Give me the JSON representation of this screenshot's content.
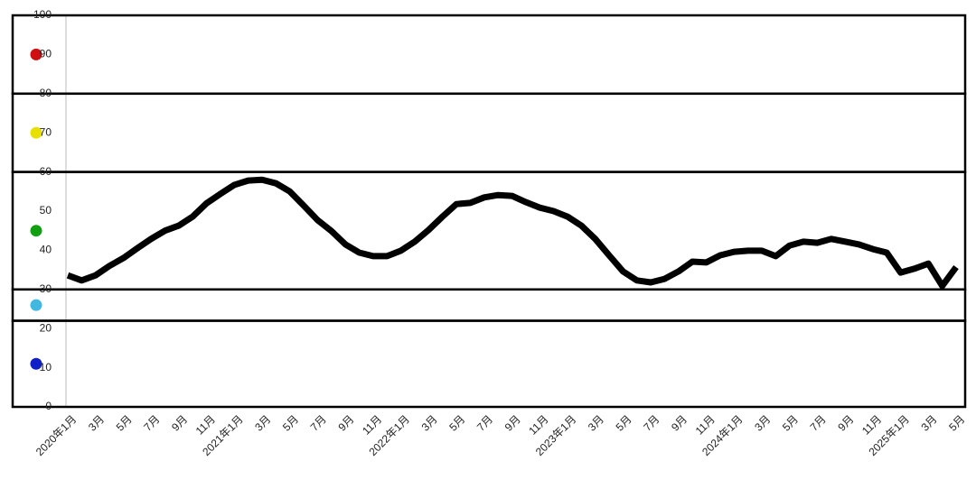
{
  "chart_data": {
    "type": "line",
    "categories": [
      "2020年1月",
      null,
      "3月",
      null,
      "5月",
      null,
      "7月",
      null,
      "9月",
      null,
      "11月",
      null,
      "2021年1月",
      null,
      "3月",
      null,
      "5月",
      null,
      "7月",
      null,
      "9月",
      null,
      "11月",
      null,
      "2022年1月",
      null,
      "3月",
      null,
      "5月",
      null,
      "7月",
      null,
      "9月",
      null,
      "11月",
      null,
      "2023年1月",
      null,
      "3月",
      null,
      "5月",
      null,
      "7月",
      null,
      "9月",
      null,
      "11月",
      null,
      "2024年1月",
      null,
      "3月",
      null,
      "5月",
      null,
      "7月",
      null,
      "9月",
      null,
      "11月",
      null,
      "2025年1月",
      null,
      "3月",
      null,
      "5月"
    ],
    "values": [
      33.6,
      32.3,
      33.6,
      36,
      38,
      40.5,
      42.9,
      45,
      46.3,
      48.6,
      52,
      54.4,
      56.7,
      57.8,
      58,
      57.1,
      55,
      51.4,
      47.7,
      44.9,
      41.5,
      39.4,
      38.5,
      38.5,
      39.9,
      42.2,
      45.2,
      48.6,
      51.8,
      52.1,
      53.5,
      54.1,
      53.9,
      52.3,
      50.9,
      50,
      48.6,
      46.3,
      42.9,
      38.7,
      34.6,
      32.3,
      31.8,
      32.7,
      34.6,
      37.1,
      36.9,
      38.7,
      39.6,
      39.9,
      39.9,
      38.5,
      41.2,
      42.2,
      41.9,
      42.9,
      42.2,
      41.5,
      40.3,
      39.4,
      34.3,
      35.3,
      36.6,
      30.9,
      35.7
    ],
    "color": "#000000",
    "ylim": [
      0,
      100
    ],
    "yticks": [
      0,
      10,
      20,
      30,
      40,
      50,
      60,
      70,
      80,
      90,
      100
    ],
    "grid": false,
    "zones": [
      {
        "from": 80,
        "to": 100,
        "color": "#d01010"
      },
      {
        "from": 60,
        "to": 80,
        "color": "#e8e000"
      },
      {
        "from": 30,
        "to": 60,
        "color": "#12a012"
      },
      {
        "from": 22,
        "to": 30,
        "color": "#40b8e0"
      },
      {
        "from": 0,
        "to": 22,
        "color": "#1020c8"
      }
    ]
  }
}
